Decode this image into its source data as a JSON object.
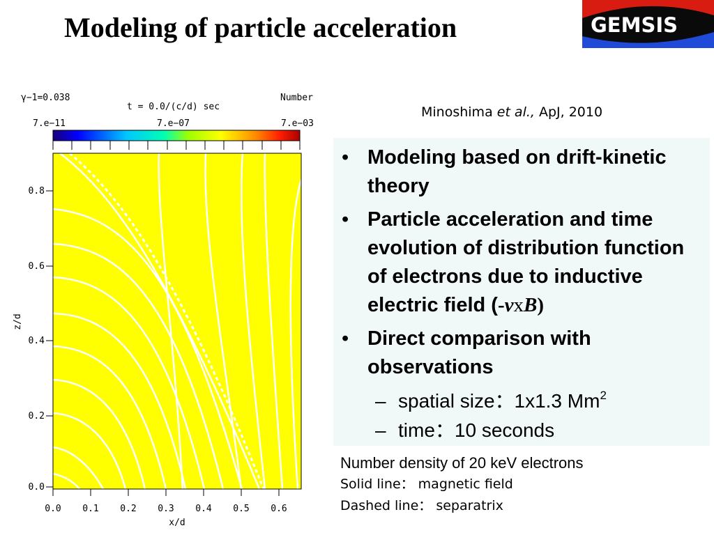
{
  "slide": {
    "title": "Modeling of particle acceleration",
    "logo_text": "GEMSIS",
    "citation": {
      "author": "Minoshima ",
      "etal": "et al.,",
      "journal": " ApJ, 2010"
    }
  },
  "bullets": [
    {
      "text": "Modeling based on drift-kinetic theory"
    },
    {
      "text": "Particle acceleration and time evolution of distribution function of electrons due to inductive electric field (",
      "vxb_prefix": "-",
      "vxb_v": "v",
      "vxb_x": "x",
      "vxb_B": "B",
      "vxb_suffix": ")"
    },
    {
      "text": "Direct comparison with observations"
    }
  ],
  "sub_bullets": [
    {
      "dash": "–",
      "text": "spatial size：1x1.3 Mm",
      "sup": "2"
    },
    {
      "dash": "–",
      "text": "time：10 seconds"
    }
  ],
  "caption": {
    "line1": "Number density of 20 keV electrons",
    "line2": "Solid line： magnetic field",
    "line3": "Dashed line： separatrix"
  },
  "figure": {
    "gamma_label": "γ−1=0.038",
    "time_label": "t = 0.0/(c/d) sec",
    "number_label": "Number",
    "colorbar_min": "7.e−11",
    "colorbar_mid": "7.e−07",
    "colorbar_max": "7.e−03",
    "xlabel": "x/d",
    "ylabel": "z/d",
    "xticks": [
      "0.0",
      "0.1",
      "0.2",
      "0.3",
      "0.4",
      "0.5",
      "0.6"
    ],
    "yticks": [
      "0.0",
      "0.2",
      "0.4",
      "0.6",
      "0.8"
    ],
    "field_color": "#ffff00",
    "line_color": "#ffffff"
  },
  "colors": {
    "logo_bg": "#0a0a0a",
    "logo_red": "#d81c12",
    "logo_blue": "#1f4bd8",
    "panel_bg": "#f1f8f8"
  }
}
